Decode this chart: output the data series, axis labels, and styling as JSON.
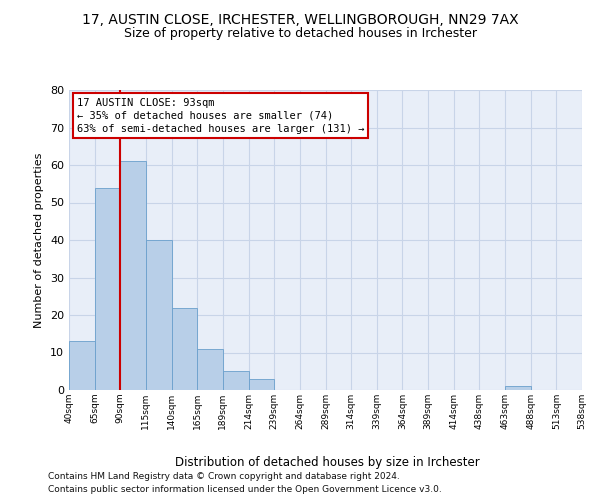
{
  "title1": "17, AUSTIN CLOSE, IRCHESTER, WELLINGBOROUGH, NN29 7AX",
  "title2": "Size of property relative to detached houses in Irchester",
  "xlabel": "Distribution of detached houses by size in Irchester",
  "ylabel": "Number of detached properties",
  "bar_values": [
    13,
    54,
    61,
    40,
    22,
    11,
    5,
    3,
    0,
    0,
    0,
    0,
    0,
    0,
    0,
    0,
    0,
    1,
    0,
    0
  ],
  "x_labels": [
    "40sqm",
    "65sqm",
    "90sqm",
    "115sqm",
    "140sqm",
    "165sqm",
    "189sqm",
    "214sqm",
    "239sqm",
    "264sqm",
    "289sqm",
    "314sqm",
    "339sqm",
    "364sqm",
    "389sqm",
    "414sqm",
    "438sqm",
    "463sqm",
    "488sqm",
    "513sqm",
    "538sqm"
  ],
  "bar_color": "#b8cfe8",
  "bar_edge_color": "#6a9fcc",
  "ylim_max": 80,
  "yticks": [
    0,
    10,
    20,
    30,
    40,
    50,
    60,
    70,
    80
  ],
  "grid_color": "#c8d4e8",
  "bg_color": "#e8eef8",
  "ann_line1": "17 AUSTIN CLOSE: 93sqm",
  "ann_line2": "← 35% of detached houses are smaller (74)",
  "ann_line3": "63% of semi-detached houses are larger (131) →",
  "vline_color": "#cc0000",
  "footer1": "Contains HM Land Registry data © Crown copyright and database right 2024.",
  "footer2": "Contains public sector information licensed under the Open Government Licence v3.0."
}
